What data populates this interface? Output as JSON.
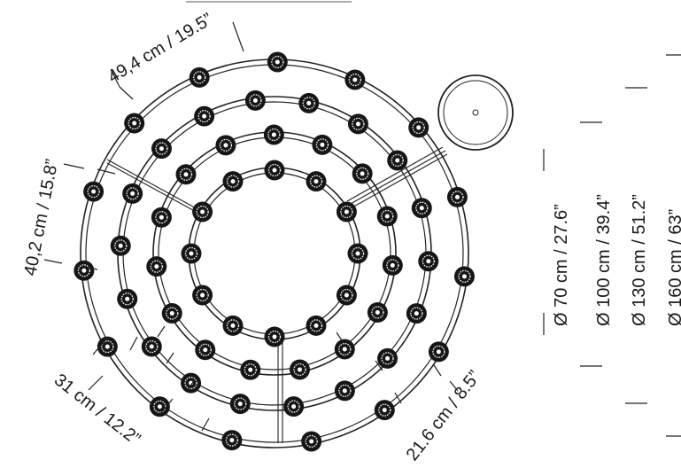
{
  "diagram": {
    "spacing_labels": {
      "outer_gap": "49,4 cm / 19.5”",
      "left_gap": "40,2 cm / 15.8”",
      "lower_left_gap": "31 cm / 12.2”",
      "lower_right_gap": "21.6 cm / 8.5”"
    },
    "diameters": [
      "Ø 70 cm / 27.6”",
      "Ø 100 cm / 39.4”",
      "Ø 130 cm / 51.2”",
      "Ø 160 cm / 63”"
    ],
    "fixture_icon": "spotlight-fixture-icon",
    "canopy_icon": "ceiling-canopy-icon"
  }
}
